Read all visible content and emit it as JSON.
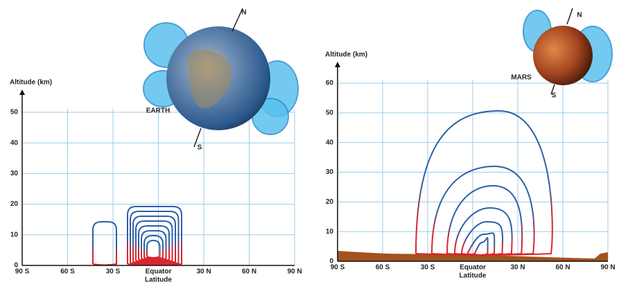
{
  "chart_data": [
    {
      "type": "streamline",
      "ylabel": "Altitude (km)",
      "xlabel": "Latitude",
      "annotations": [
        "EARTH",
        "N",
        "S"
      ],
      "xlim": [
        -90,
        90
      ],
      "ylim": [
        0,
        50
      ],
      "xticks": [
        {
          "value": -90,
          "label": "90 S"
        },
        {
          "value": -60,
          "label": "60 S"
        },
        {
          "value": -30,
          "label": "30 S"
        },
        {
          "value": 0,
          "label": "Equator"
        },
        {
          "value": 30,
          "label": "30 N"
        },
        {
          "value": 60,
          "label": "60 N"
        },
        {
          "value": 90,
          "label": "90 N"
        }
      ],
      "yticks": [
        0,
        10,
        20,
        30,
        40,
        50
      ],
      "grid": true
    },
    {
      "type": "streamline",
      "ylabel": "Altitude (km)",
      "xlabel": "Latitude",
      "annotations": [
        "MARS",
        "N",
        "S"
      ],
      "xlim": [
        -90,
        90
      ],
      "ylim": [
        0,
        60
      ],
      "xticks": [
        {
          "value": -90,
          "label": "90 S"
        },
        {
          "value": -60,
          "label": "60 S"
        },
        {
          "value": -30,
          "label": "30 S"
        },
        {
          "value": 0,
          "label": "Equator"
        },
        {
          "value": 30,
          "label": "30 N"
        },
        {
          "value": 60,
          "label": "60 N"
        },
        {
          "value": 90,
          "label": "90 N"
        }
      ],
      "yticks": [
        0,
        10,
        20,
        30,
        40,
        50,
        60
      ],
      "grid": true
    }
  ]
}
